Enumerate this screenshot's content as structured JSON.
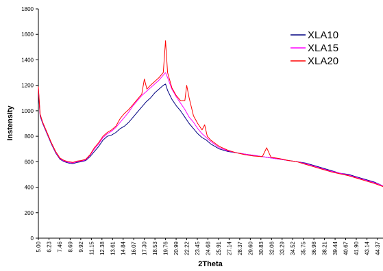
{
  "chart_data": {
    "type": "line",
    "title": "",
    "xlabel": "2Theta",
    "ylabel": "Instensity",
    "xlim": [
      5.0,
      45.0
    ],
    "ylim": [
      0,
      1800
    ],
    "yticks": [
      0,
      200,
      400,
      600,
      800,
      1000,
      1200,
      1400,
      1600,
      1800
    ],
    "xtick_labels": [
      "5.00",
      "6.23",
      "7.46",
      "8.69",
      "9.92",
      "11.15",
      "12.38",
      "13.61",
      "14.84",
      "16.07",
      "17.30",
      "18.53",
      "19.76",
      "20.99",
      "22.22",
      "23.45",
      "24.68",
      "25.91",
      "27.14",
      "28.37",
      "29.60",
      "30.83",
      "32.06",
      "33.29",
      "34.52",
      "35.75",
      "36.98",
      "38.21",
      "39.44",
      "40.67",
      "41.90",
      "43.14",
      "44.37"
    ],
    "grid": false,
    "legend_position": "top-right",
    "series": [
      {
        "name": "XLA10",
        "color": "#000080",
        "x": [
          5.0,
          5.2,
          5.5,
          6.0,
          6.5,
          7.0,
          7.5,
          8.0,
          8.5,
          9.0,
          9.5,
          10.0,
          10.5,
          11.0,
          11.5,
          12.0,
          12.5,
          13.0,
          13.5,
          14.0,
          14.5,
          15.0,
          15.5,
          16.0,
          16.5,
          17.0,
          17.5,
          18.0,
          18.5,
          19.0,
          19.5,
          19.76,
          20.0,
          20.5,
          21.0,
          21.5,
          22.0,
          22.5,
          23.0,
          23.5,
          24.0,
          24.5,
          25.0,
          26.0,
          27.0,
          28.0,
          29.0,
          30.0,
          31.0,
          32.0,
          33.0,
          34.0,
          35.0,
          36.0,
          37.0,
          38.0,
          39.0,
          40.0,
          41.0,
          42.0,
          43.0,
          44.0,
          45.0
        ],
        "y": [
          1170,
          960,
          900,
          820,
          740,
          670,
          620,
          600,
          590,
          585,
          595,
          600,
          610,
          640,
          680,
          720,
          770,
          800,
          810,
          830,
          860,
          880,
          910,
          950,
          990,
          1030,
          1070,
          1100,
          1140,
          1170,
          1200,
          1210,
          1160,
          1090,
          1040,
          1000,
          950,
          900,
          860,
          820,
          790,
          770,
          740,
          700,
          680,
          670,
          660,
          650,
          640,
          630,
          620,
          610,
          600,
          590,
          570,
          550,
          530,
          510,
          500,
          480,
          460,
          440,
          410
        ]
      },
      {
        "name": "XLA15",
        "color": "#ff00ff",
        "x": [
          5.0,
          5.2,
          5.5,
          6.0,
          6.5,
          7.0,
          7.5,
          8.0,
          8.5,
          9.0,
          9.5,
          10.0,
          10.5,
          11.0,
          11.5,
          12.0,
          12.5,
          13.0,
          13.5,
          14.0,
          14.5,
          15.0,
          15.5,
          16.0,
          16.5,
          17.0,
          17.5,
          18.0,
          18.5,
          19.0,
          19.5,
          19.76,
          20.0,
          20.5,
          21.0,
          21.5,
          22.0,
          22.5,
          23.0,
          23.5,
          24.0,
          24.5,
          25.0,
          26.0,
          27.0,
          28.0,
          29.0,
          30.0,
          31.0,
          32.0,
          33.0,
          34.0,
          35.0,
          36.0,
          37.0,
          38.0,
          39.0,
          40.0,
          41.0,
          42.0,
          43.0,
          44.0,
          45.0
        ],
        "y": [
          1180,
          970,
          905,
          825,
          745,
          675,
          625,
          605,
          595,
          590,
          600,
          605,
          615,
          650,
          700,
          740,
          790,
          820,
          840,
          870,
          910,
          950,
          990,
          1040,
          1080,
          1120,
          1150,
          1180,
          1210,
          1240,
          1280,
          1300,
          1260,
          1170,
          1110,
          1060,
          1010,
          950,
          910,
          860,
          820,
          790,
          760,
          710,
          685,
          670,
          660,
          650,
          640,
          630,
          620,
          610,
          600,
          585,
          565,
          545,
          525,
          510,
          495,
          475,
          455,
          435,
          410
        ]
      },
      {
        "name": "XLA20",
        "color": "#ff0000",
        "x": [
          5.0,
          5.2,
          5.5,
          6.0,
          6.5,
          7.0,
          7.5,
          8.0,
          8.5,
          9.0,
          9.5,
          10.0,
          10.5,
          11.0,
          11.5,
          12.0,
          12.5,
          13.0,
          13.5,
          14.0,
          14.5,
          15.0,
          15.5,
          16.0,
          16.5,
          17.0,
          17.3,
          17.6,
          18.0,
          18.5,
          19.0,
          19.5,
          19.76,
          20.0,
          20.5,
          21.0,
          21.5,
          22.0,
          22.22,
          22.5,
          23.0,
          23.5,
          24.0,
          24.3,
          24.6,
          25.0,
          26.0,
          27.0,
          28.0,
          29.0,
          30.0,
          31.0,
          31.5,
          32.0,
          33.0,
          34.0,
          35.0,
          36.0,
          37.0,
          38.0,
          39.0,
          40.0,
          41.0,
          42.0,
          43.0,
          44.0,
          45.0
        ],
        "y": [
          1190,
          975,
          910,
          830,
          750,
          680,
          630,
          610,
          600,
          595,
          605,
          610,
          620,
          655,
          710,
          750,
          800,
          830,
          850,
          880,
          940,
          980,
          1010,
          1050,
          1090,
          1130,
          1250,
          1170,
          1200,
          1230,
          1260,
          1300,
          1550,
          1300,
          1180,
          1120,
          1080,
          1080,
          1200,
          1100,
          960,
          900,
          850,
          890,
          800,
          770,
          720,
          690,
          670,
          655,
          645,
          640,
          710,
          635,
          625,
          610,
          600,
          580,
          560,
          540,
          520,
          505,
          490,
          470,
          450,
          430,
          405
        ]
      }
    ]
  }
}
